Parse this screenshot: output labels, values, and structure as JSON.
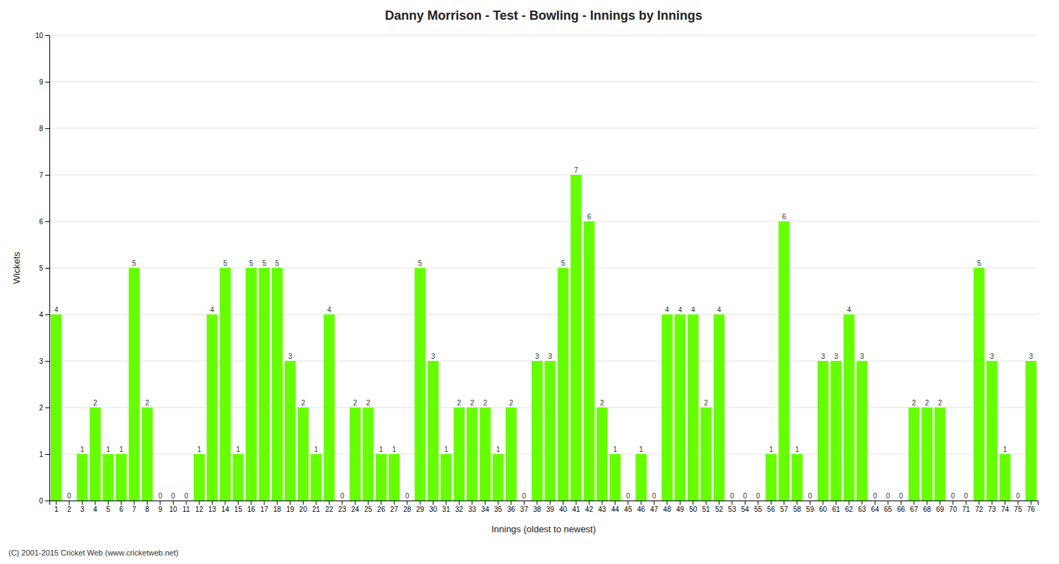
{
  "chart_data": {
    "type": "bar",
    "title": "Danny Morrison - Test - Bowling - Innings by Innings",
    "x_label": "Innings (oldest to newest)",
    "y_label": "Wickets",
    "annotations": [
      "(C) 2001-2015 Cricket Web (www.cricketweb.net)"
    ],
    "categories": [
      "1",
      "2",
      "3",
      "4",
      "5",
      "6",
      "7",
      "8",
      "9",
      "10",
      "11",
      "12",
      "13",
      "14",
      "15",
      "16",
      "17",
      "18",
      "19",
      "20",
      "21",
      "22",
      "23",
      "24",
      "25",
      "26",
      "27",
      "28",
      "29",
      "30",
      "31",
      "32",
      "33",
      "34",
      "35",
      "36",
      "37",
      "38",
      "39",
      "40",
      "41",
      "42",
      "43",
      "44",
      "45",
      "46",
      "47",
      "48",
      "49",
      "50",
      "51",
      "52",
      "53",
      "54",
      "55",
      "56",
      "57",
      "58",
      "59",
      "60",
      "61",
      "62",
      "63",
      "64",
      "65",
      "66",
      "67",
      "68",
      "69",
      "70",
      "71",
      "72",
      "73",
      "74",
      "75",
      "76"
    ],
    "values": [
      4,
      0,
      1,
      2,
      1,
      1,
      5,
      2,
      0,
      0,
      0,
      1,
      4,
      5,
      1,
      5,
      5,
      5,
      3,
      2,
      1,
      4,
      0,
      2,
      2,
      1,
      1,
      0,
      5,
      3,
      1,
      2,
      2,
      2,
      1,
      2,
      0,
      3,
      3,
      5,
      7,
      6,
      2,
      1,
      0,
      1,
      0,
      4,
      4,
      4,
      2,
      4,
      0,
      0,
      0,
      1,
      6,
      1,
      0,
      3,
      3,
      4,
      3,
      0,
      0,
      0,
      2,
      2,
      2,
      0,
      0,
      5,
      3,
      1,
      0,
      3
    ],
    "color": "#66FF00",
    "ylim": [
      0,
      10
    ],
    "yticks": [
      0,
      1,
      2,
      3,
      4,
      5,
      6,
      7,
      8,
      9,
      10
    ],
    "grid": true,
    "data_labels": true
  }
}
